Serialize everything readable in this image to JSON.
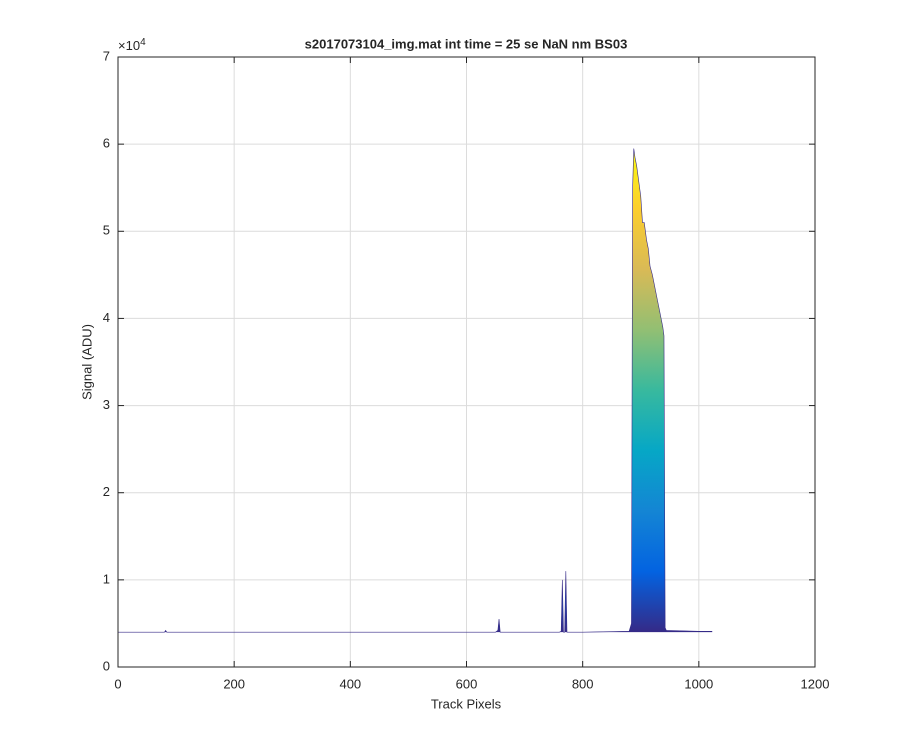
{
  "chart_data": {
    "type": "area",
    "title": "s2017073104_img.mat int time = 25 se  NaN nm BS03",
    "xlabel": "Track Pixels",
    "ylabel": "Signal (ADU)",
    "y_multiplier": {
      "base": "×10",
      "exponent": "4"
    },
    "x": [
      0,
      80,
      82,
      84,
      200,
      400,
      600,
      650,
      654,
      656,
      658,
      700,
      760,
      763,
      765,
      767,
      769,
      771,
      773,
      775,
      800,
      880,
      884,
      886,
      888,
      890,
      893,
      896,
      900,
      903,
      906,
      910,
      913,
      916,
      920,
      923,
      926,
      929,
      932,
      935,
      938,
      940,
      942,
      944,
      1000,
      1023
    ],
    "values": [
      0.4,
      0.4,
      0.42,
      0.4,
      0.4,
      0.4,
      0.4,
      0.4,
      0.42,
      0.55,
      0.4,
      0.4,
      0.4,
      0.41,
      1.0,
      0.4,
      0.4,
      1.1,
      0.4,
      0.4,
      0.4,
      0.41,
      0.5,
      5.5,
      5.95,
      5.85,
      5.75,
      5.6,
      5.4,
      5.1,
      5.1,
      4.9,
      4.8,
      4.6,
      4.5,
      4.4,
      4.3,
      4.2,
      4.1,
      4.0,
      3.9,
      3.8,
      0.45,
      0.42,
      0.41,
      0.41
    ],
    "colormap": [
      "#352a87",
      "#0363e1",
      "#1485d4",
      "#06a7c6",
      "#38b99e",
      "#92bf73",
      "#d9ba56",
      "#fcce2e",
      "#f9fb0e"
    ],
    "xlim": [
      0,
      1200
    ],
    "xticks": [
      0,
      200,
      400,
      600,
      800,
      1000,
      1200
    ],
    "ylim": [
      0,
      7
    ],
    "yticks": [
      0,
      1,
      2,
      3,
      4,
      5,
      6,
      7
    ],
    "grid": true
  }
}
